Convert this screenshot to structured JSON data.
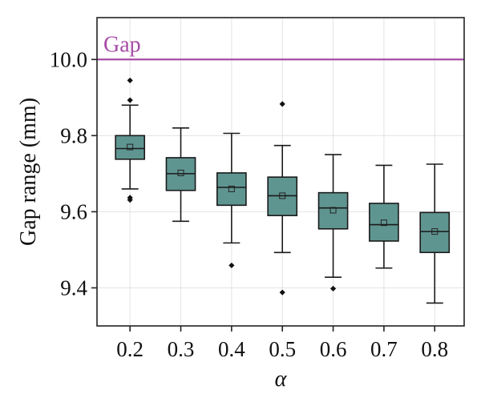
{
  "chart_data": {
    "type": "box",
    "categories": [
      "0.2",
      "0.3",
      "0.4",
      "0.5",
      "0.6",
      "0.7",
      "0.8"
    ],
    "xlabel": "α",
    "ylabel": "Gap range (mm)",
    "ylim": [
      9.3,
      10.11
    ],
    "yticks": [
      "9.4",
      "9.6",
      "9.8",
      "10.0"
    ],
    "grid": true,
    "box_color": "#5f9591",
    "reference_line": {
      "label": "Gap",
      "value": 10.0,
      "color": "#a64ca6"
    },
    "boxes": [
      {
        "category": "0.2",
        "whisker_low": 9.66,
        "q1": 9.738,
        "median": 9.766,
        "q3": 9.8,
        "whisker_high": 9.88,
        "mean": 9.77,
        "outliers": [
          9.945,
          9.893,
          9.637,
          9.631
        ]
      },
      {
        "category": "0.3",
        "whisker_low": 9.575,
        "q1": 9.656,
        "median": 9.7,
        "q3": 9.742,
        "whisker_high": 9.82,
        "mean": 9.702,
        "outliers": []
      },
      {
        "category": "0.4",
        "whisker_low": 9.518,
        "q1": 9.617,
        "median": 9.664,
        "q3": 9.702,
        "whisker_high": 9.806,
        "mean": 9.66,
        "outliers": [
          9.459
        ]
      },
      {
        "category": "0.5",
        "whisker_low": 9.493,
        "q1": 9.59,
        "median": 9.642,
        "q3": 9.691,
        "whisker_high": 9.774,
        "mean": 9.642,
        "outliers": [
          9.883,
          9.388
        ]
      },
      {
        "category": "0.6",
        "whisker_low": 9.428,
        "q1": 9.555,
        "median": 9.61,
        "q3": 9.65,
        "whisker_high": 9.75,
        "mean": 9.604,
        "outliers": [
          9.398
        ]
      },
      {
        "category": "0.7",
        "whisker_low": 9.452,
        "q1": 9.523,
        "median": 9.566,
        "q3": 9.622,
        "whisker_high": 9.722,
        "mean": 9.571,
        "outliers": []
      },
      {
        "category": "0.8",
        "whisker_low": 9.36,
        "q1": 9.493,
        "median": 9.548,
        "q3": 9.598,
        "whisker_high": 9.725,
        "mean": 9.548,
        "outliers": []
      }
    ]
  }
}
